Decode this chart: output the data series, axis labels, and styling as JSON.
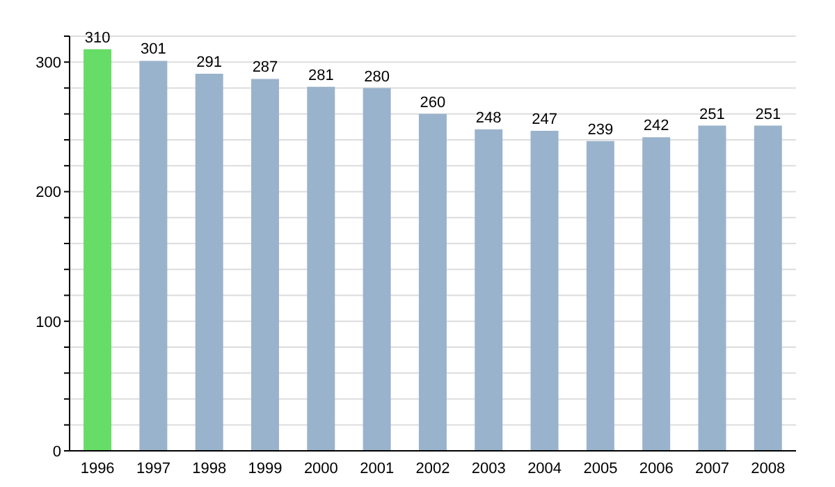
{
  "chart_data": {
    "type": "bar",
    "categories": [
      "1996",
      "1997",
      "1998",
      "1999",
      "2000",
      "2001",
      "2002",
      "2003",
      "2004",
      "2005",
      "2006",
      "2007",
      "2008"
    ],
    "values": [
      310,
      301,
      291,
      287,
      281,
      280,
      260,
      248,
      247,
      239,
      242,
      251,
      251
    ],
    "colors": [
      "#66dd66",
      "#9ab3cc",
      "#9ab3cc",
      "#9ab3cc",
      "#9ab3cc",
      "#9ab3cc",
      "#9ab3cc",
      "#9ab3cc",
      "#9ab3cc",
      "#9ab3cc",
      "#9ab3cc",
      "#9ab3cc",
      "#9ab3cc"
    ],
    "ylim": [
      0,
      320
    ],
    "yticks": [
      0,
      {
        "value": 20,
        "label": null
      },
      {
        "value": 40,
        "label": null
      },
      {
        "value": 60,
        "label": null
      },
      {
        "value": 80,
        "label": null
      },
      100,
      {
        "value": 120,
        "label": null
      },
      {
        "value": 140,
        "label": null
      },
      {
        "value": 160,
        "label": null
      },
      {
        "value": 180,
        "label": null
      },
      200,
      {
        "value": 220,
        "label": null
      },
      {
        "value": 240,
        "label": null
      },
      {
        "value": 260,
        "label": null
      },
      {
        "value": 280,
        "label": null
      },
      300,
      {
        "value": 320,
        "label": null
      }
    ],
    "grid": true,
    "data_labels": true
  }
}
